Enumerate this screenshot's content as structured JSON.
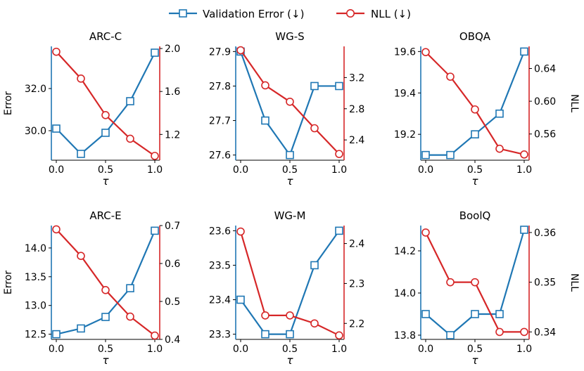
{
  "legend": {
    "items": [
      {
        "label": "Validation Error (↓)",
        "color": "#1f77b4",
        "marker": "square"
      },
      {
        "label": "NLL (↓)",
        "color": "#d62728",
        "marker": "circle"
      }
    ]
  },
  "chart_data": [
    {
      "type": "line",
      "title": "ARC-C",
      "xlabel": "τ",
      "ylabel_left": "Error",
      "ylabel_right": "",
      "x": [
        0.0,
        0.25,
        0.5,
        0.75,
        1.0
      ],
      "xticks": [
        0.0,
        0.5,
        1.0
      ],
      "xtick_labels": [
        "0.0",
        "0.5",
        "1.0"
      ],
      "xlim": [
        -0.05,
        1.05
      ],
      "left_axis": {
        "series": "Validation Error (↓)",
        "values": [
          30.1,
          28.9,
          29.9,
          31.4,
          33.7
        ],
        "lim": [
          28.6,
          34.0
        ],
        "ticks": [
          30.0,
          32.0
        ],
        "tick_labels": [
          "30.0",
          "32.0"
        ]
      },
      "right_axis": {
        "series": "NLL (↓)",
        "values": [
          1.97,
          1.72,
          1.38,
          1.16,
          1.0
        ],
        "lim": [
          0.96,
          2.02
        ],
        "ticks": [
          1.2,
          1.6,
          2.0
        ],
        "tick_labels": [
          "1.2",
          "1.6",
          "2.0"
        ]
      }
    },
    {
      "type": "line",
      "title": "WG-S",
      "xlabel": "τ",
      "ylabel_left": "",
      "ylabel_right": "",
      "x": [
        0.0,
        0.25,
        0.5,
        0.75,
        1.0
      ],
      "xticks": [
        0.0,
        0.5,
        1.0
      ],
      "xtick_labels": [
        "0.0",
        "0.5",
        "1.0"
      ],
      "xlim": [
        -0.05,
        1.05
      ],
      "left_axis": {
        "series": "Validation Error (↓)",
        "values": [
          27.9,
          27.7,
          27.6,
          27.8,
          27.8
        ],
        "lim": [
          27.585,
          27.915
        ],
        "ticks": [
          27.6,
          27.7,
          27.8,
          27.9
        ],
        "tick_labels": [
          "27.6",
          "27.7",
          "27.8",
          "27.9"
        ]
      },
      "right_axis": {
        "series": "NLL (↓)",
        "values": [
          3.55,
          3.1,
          2.89,
          2.55,
          2.22
        ],
        "lim": [
          2.14,
          3.6
        ],
        "ticks": [
          2.4,
          2.8,
          3.2
        ],
        "tick_labels": [
          "2.4",
          "2.8",
          "3.2"
        ]
      }
    },
    {
      "type": "line",
      "title": "OBQA",
      "xlabel": "τ",
      "ylabel_left": "",
      "ylabel_right": "NLL",
      "x": [
        0.0,
        0.25,
        0.5,
        0.75,
        1.0
      ],
      "xticks": [
        0.0,
        0.5,
        1.0
      ],
      "xtick_labels": [
        "0.0",
        "0.5",
        "1.0"
      ],
      "xlim": [
        -0.05,
        1.05
      ],
      "left_axis": {
        "series": "Validation Error (↓)",
        "values": [
          19.1,
          19.1,
          19.2,
          19.3,
          19.6
        ],
        "lim": [
          19.075,
          19.625
        ],
        "ticks": [
          19.2,
          19.4,
          19.6
        ],
        "tick_labels": [
          "19.2",
          "19.4",
          "19.6"
        ]
      },
      "right_axis": {
        "series": "NLL (↓)",
        "values": [
          0.66,
          0.63,
          0.59,
          0.542,
          0.535
        ],
        "lim": [
          0.528,
          0.667
        ],
        "ticks": [
          0.56,
          0.6,
          0.64
        ],
        "tick_labels": [
          "0.56",
          "0.60",
          "0.64"
        ]
      }
    },
    {
      "type": "line",
      "title": "ARC-E",
      "xlabel": "τ",
      "ylabel_left": "Error",
      "ylabel_right": "",
      "x": [
        0.0,
        0.25,
        0.5,
        0.75,
        1.0
      ],
      "xticks": [
        0.0,
        0.5,
        1.0
      ],
      "xtick_labels": [
        "0.0",
        "0.5",
        "1.0"
      ],
      "xlim": [
        -0.05,
        1.05
      ],
      "left_axis": {
        "series": "Validation Error (↓)",
        "values": [
          12.5,
          12.6,
          12.8,
          13.3,
          14.3
        ],
        "lim": [
          12.41,
          14.39
        ],
        "ticks": [
          12.5,
          13.0,
          13.5,
          14.0
        ],
        "tick_labels": [
          "12.5",
          "13.0",
          "13.5",
          "14.0"
        ]
      },
      "right_axis": {
        "series": "NLL (↓)",
        "values": [
          0.69,
          0.62,
          0.53,
          0.46,
          0.41
        ],
        "lim": [
          0.4,
          0.7
        ],
        "ticks": [
          0.4,
          0.5,
          0.6,
          0.7
        ],
        "tick_labels": [
          "0.4",
          "0.5",
          "0.6",
          "0.7"
        ]
      }
    },
    {
      "type": "line",
      "title": "WG-M",
      "xlabel": "τ",
      "ylabel_left": "",
      "ylabel_right": "",
      "x": [
        0.0,
        0.25,
        0.5,
        0.75,
        1.0
      ],
      "xticks": [
        0.0,
        0.5,
        1.0
      ],
      "xtick_labels": [
        "0.0",
        "0.5",
        "1.0"
      ],
      "xlim": [
        -0.05,
        1.05
      ],
      "left_axis": {
        "series": "Validation Error (↓)",
        "values": [
          23.4,
          23.3,
          23.3,
          23.5,
          23.6
        ],
        "lim": [
          23.285,
          23.615
        ],
        "ticks": [
          23.3,
          23.4,
          23.5,
          23.6
        ],
        "tick_labels": [
          "23.3",
          "23.4",
          "23.5",
          "23.6"
        ]
      },
      "right_axis": {
        "series": "NLL (↓)",
        "values": [
          2.43,
          2.22,
          2.22,
          2.2,
          2.17
        ],
        "lim": [
          2.16,
          2.445
        ],
        "ticks": [
          2.2,
          2.3,
          2.4
        ],
        "tick_labels": [
          "2.2",
          "2.3",
          "2.4"
        ]
      }
    },
    {
      "type": "line",
      "title": "BoolQ",
      "xlabel": "τ",
      "ylabel_left": "",
      "ylabel_right": "NLL",
      "x": [
        0.0,
        0.25,
        0.5,
        0.75,
        1.0
      ],
      "xticks": [
        0.0,
        0.5,
        1.0
      ],
      "xtick_labels": [
        "0.0",
        "0.5",
        "1.0"
      ],
      "xlim": [
        -0.05,
        1.05
      ],
      "left_axis": {
        "series": "Validation Error (↓)",
        "values": [
          13.9,
          13.8,
          13.9,
          13.9,
          14.3
        ],
        "lim": [
          13.78,
          14.32
        ],
        "ticks": [
          13.8,
          14.0,
          14.2
        ],
        "tick_labels": [
          "13.8",
          "14.0",
          "14.2"
        ]
      },
      "right_axis": {
        "series": "NLL (↓)",
        "values": [
          0.36,
          0.35,
          0.35,
          0.34,
          0.34
        ],
        "lim": [
          0.3385,
          0.3614
        ],
        "ticks": [
          0.34,
          0.35,
          0.36
        ],
        "tick_labels": [
          "0.34",
          "0.35",
          "0.36"
        ]
      }
    }
  ]
}
